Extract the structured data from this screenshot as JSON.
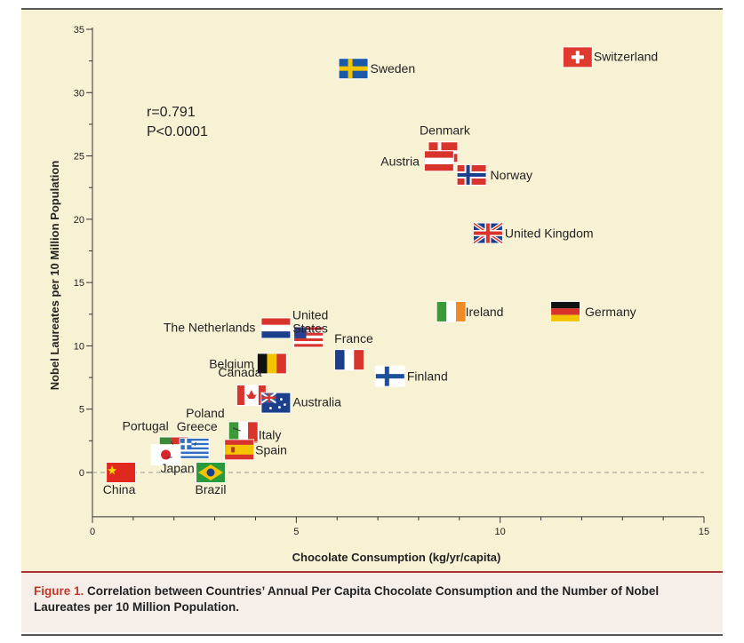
{
  "chart_data": {
    "type": "scatter",
    "xlabel": "Chocolate Consumption (kg/yr/capita)",
    "ylabel": "Nobel Laureates per 10 Million Population",
    "xlim": [
      0,
      15
    ],
    "ylim": [
      -3.5,
      35
    ],
    "x_ticks": [
      "0",
      "5",
      "10",
      "15"
    ],
    "y_ticks": [
      "0",
      "5",
      "10",
      "15",
      "20",
      "25",
      "30",
      "35"
    ],
    "grid": false,
    "zero_reference_line": true,
    "annotation": [
      "r=0.791",
      "P<0.0001"
    ],
    "points": [
      {
        "label": "Switzerland",
        "x": 11.9,
        "y": 32.8,
        "flag": "switzerland"
      },
      {
        "label": "Sweden",
        "x": 6.4,
        "y": 31.9,
        "flag": "sweden"
      },
      {
        "label": "Denmark",
        "x": 8.6,
        "y": 25.3,
        "flag": "denmark"
      },
      {
        "label": "Austria",
        "x": 8.5,
        "y": 24.6,
        "flag": "austria"
      },
      {
        "label": "Norway",
        "x": 9.3,
        "y": 23.5,
        "flag": "norway"
      },
      {
        "label": "United Kingdom",
        "x": 9.7,
        "y": 18.9,
        "flag": "united-kingdom"
      },
      {
        "label": "Ireland",
        "x": 8.8,
        "y": 12.7,
        "flag": "ireland"
      },
      {
        "label": "Germany",
        "x": 11.6,
        "y": 12.7,
        "flag": "germany"
      },
      {
        "label": "The Netherlands",
        "x": 4.5,
        "y": 11.4,
        "flag": "netherlands"
      },
      {
        "label": "United States",
        "x": 5.3,
        "y": 10.7,
        "flag": "united-states"
      },
      {
        "label": "France",
        "x": 6.3,
        "y": 8.9,
        "flag": "france"
      },
      {
        "label": "Belgium",
        "x": 4.4,
        "y": 8.6,
        "flag": "belgium"
      },
      {
        "label": "Finland",
        "x": 7.3,
        "y": 7.6,
        "flag": "finland"
      },
      {
        "label": "Canada",
        "x": 3.9,
        "y": 6.1,
        "flag": "canada"
      },
      {
        "label": "Australia",
        "x": 4.5,
        "y": 5.5,
        "flag": "australia"
      },
      {
        "label": "Poland",
        "x": 3.7,
        "y": 3.1,
        "flag": "poland"
      },
      {
        "label": "Italy",
        "x": 3.7,
        "y": 3.2,
        "flag": "italy"
      },
      {
        "label": "Portugal",
        "x": 2.0,
        "y": 2.0,
        "flag": "portugal"
      },
      {
        "label": "Greece",
        "x": 2.5,
        "y": 1.9,
        "flag": "greece"
      },
      {
        "label": "Spain",
        "x": 3.6,
        "y": 1.8,
        "flag": "spain"
      },
      {
        "label": "Japan",
        "x": 1.8,
        "y": 1.4,
        "flag": "japan"
      },
      {
        "label": "Brazil",
        "x": 2.9,
        "y": 0.0,
        "flag": "brazil"
      },
      {
        "label": "China",
        "x": 0.7,
        "y": 0.0,
        "flag": "china"
      }
    ]
  },
  "caption": {
    "label": "Figure 1.",
    "text": "Correlation between Countries’ Annual Per Capita Chocolate Consumption and the Number of Nobel Laureates per 10 Million Population."
  },
  "colors": {
    "plot_background": "#f8f2d5",
    "axis": "#333333",
    "caption_accent": "#c0392b"
  }
}
